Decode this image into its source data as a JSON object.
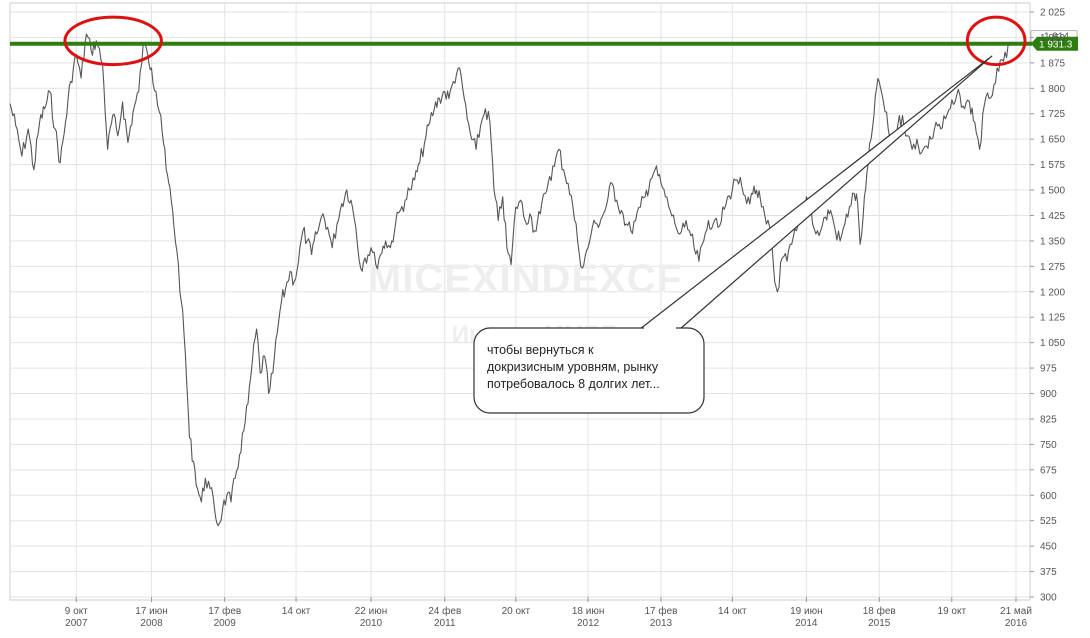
{
  "chart_data": {
    "type": "line",
    "title": "",
    "watermark_title": "MICEXINDEXCF",
    "watermark_subtitle": "Индекс ММВБ",
    "xlabel": "",
    "ylabel": "",
    "ylim": [
      300,
      2025
    ],
    "y_ticks": [
      2025,
      1950,
      1875,
      1800,
      1725,
      1650,
      1575,
      1500,
      1425,
      1350,
      1275,
      1200,
      1125,
      1050,
      975,
      900,
      825,
      750,
      675,
      600,
      525,
      450,
      375,
      300
    ],
    "y_tick_labels": [
      "2 025",
      "1 950",
      "1 875",
      "1 800",
      "1 725",
      "1 650",
      "1 575",
      "1 500",
      "1 425",
      "1 350",
      "1 275",
      "1 200",
      "1 125",
      "1 050",
      "975",
      "900",
      "825",
      "750",
      "675",
      "600",
      "525",
      "450",
      "375",
      "300"
    ],
    "x_range": [
      "2007-03-01",
      "2016-05-21"
    ],
    "x_ticks": [
      {
        "date": "2007-10-09",
        "label": "9 окт",
        "year": "2007"
      },
      {
        "date": "2008-06-17",
        "label": "17 июн",
        "year": "2008"
      },
      {
        "date": "2009-02-17",
        "label": "17 фев",
        "year": "2009"
      },
      {
        "date": "2009-10-14",
        "label": "14 окт",
        "year": ""
      },
      {
        "date": "2010-06-22",
        "label": "22 июн",
        "year": "2010"
      },
      {
        "date": "2011-02-24",
        "label": "24 фев",
        "year": "2011"
      },
      {
        "date": "2011-10-20",
        "label": "20 окт",
        "year": ""
      },
      {
        "date": "2012-06-18",
        "label": "18 июн",
        "year": "2012"
      },
      {
        "date": "2013-02-17",
        "label": "17 фев",
        "year": "2013"
      },
      {
        "date": "2013-10-14",
        "label": "14 окт",
        "year": ""
      },
      {
        "date": "2014-06-19",
        "label": "19 июн",
        "year": "2014"
      },
      {
        "date": "2015-02-18",
        "label": "18 фев",
        "year": "2015"
      },
      {
        "date": "2015-10-19",
        "label": "19 окт",
        "year": ""
      },
      {
        "date": "2016-05-21",
        "label": "21 май",
        "year": "2016"
      }
    ],
    "grid": true,
    "horizontal_level": {
      "value": 1931.3,
      "label": "1 931.3",
      "color": "#2e7d10"
    },
    "secondary_price_label": "1 914",
    "series": [
      {
        "color": "#555555",
        "points": [
          [
            "2007-03-01",
            1755
          ],
          [
            "2007-03-20",
            1690
          ],
          [
            "2007-04-10",
            1600
          ],
          [
            "2007-05-01",
            1680
          ],
          [
            "2007-05-20",
            1560
          ],
          [
            "2007-06-08",
            1700
          ],
          [
            "2007-06-25",
            1740
          ],
          [
            "2007-07-12",
            1790
          ],
          [
            "2007-07-30",
            1680
          ],
          [
            "2007-08-16",
            1580
          ],
          [
            "2007-09-03",
            1700
          ],
          [
            "2007-09-20",
            1820
          ],
          [
            "2007-10-09",
            1900
          ],
          [
            "2007-10-25",
            1830
          ],
          [
            "2007-11-12",
            1960
          ],
          [
            "2007-11-28",
            1910
          ],
          [
            "2007-12-15",
            1940
          ],
          [
            "2008-01-05",
            1870
          ],
          [
            "2008-01-22",
            1620
          ],
          [
            "2008-02-08",
            1720
          ],
          [
            "2008-02-25",
            1660
          ],
          [
            "2008-03-12",
            1760
          ],
          [
            "2008-03-30",
            1640
          ],
          [
            "2008-04-16",
            1730
          ],
          [
            "2008-05-05",
            1790
          ],
          [
            "2008-05-20",
            1930
          ],
          [
            "2008-06-05",
            1895
          ],
          [
            "2008-06-17",
            1860
          ],
          [
            "2008-07-02",
            1790
          ],
          [
            "2008-07-18",
            1720
          ],
          [
            "2008-08-05",
            1560
          ],
          [
            "2008-08-22",
            1470
          ],
          [
            "2008-09-10",
            1320
          ],
          [
            "2008-09-25",
            1170
          ],
          [
            "2008-10-08",
            1020
          ],
          [
            "2008-10-22",
            770
          ],
          [
            "2008-11-05",
            700
          ],
          [
            "2008-11-18",
            620
          ],
          [
            "2008-12-01",
            580
          ],
          [
            "2008-12-14",
            650
          ],
          [
            "2008-12-30",
            620
          ],
          [
            "2009-01-14",
            560
          ],
          [
            "2009-01-26",
            510
          ],
          [
            "2009-02-10",
            560
          ],
          [
            "2009-02-24",
            600
          ],
          [
            "2009-03-10",
            580
          ],
          [
            "2009-03-24",
            650
          ],
          [
            "2009-04-08",
            720
          ],
          [
            "2009-04-22",
            790
          ],
          [
            "2009-05-06",
            870
          ],
          [
            "2009-05-20",
            990
          ],
          [
            "2009-06-04",
            1090
          ],
          [
            "2009-06-16",
            960
          ],
          [
            "2009-07-01",
            1010
          ],
          [
            "2009-07-14",
            900
          ],
          [
            "2009-07-28",
            960
          ],
          [
            "2009-08-12",
            1080
          ],
          [
            "2009-08-26",
            1170
          ],
          [
            "2009-09-09",
            1210
          ],
          [
            "2009-09-24",
            1260
          ],
          [
            "2009-10-08",
            1230
          ],
          [
            "2009-10-22",
            1290
          ],
          [
            "2009-11-06",
            1380
          ],
          [
            "2009-11-20",
            1350
          ],
          [
            "2009-12-05",
            1310
          ],
          [
            "2009-12-22",
            1370
          ],
          [
            "2010-01-12",
            1430
          ],
          [
            "2010-01-28",
            1390
          ],
          [
            "2010-02-12",
            1330
          ],
          [
            "2010-02-28",
            1400
          ],
          [
            "2010-03-16",
            1460
          ],
          [
            "2010-04-02",
            1500
          ],
          [
            "2010-04-16",
            1470
          ],
          [
            "2010-05-02",
            1390
          ],
          [
            "2010-05-18",
            1270
          ],
          [
            "2010-06-02",
            1300
          ],
          [
            "2010-06-22",
            1330
          ],
          [
            "2010-07-08",
            1280
          ],
          [
            "2010-07-24",
            1310
          ],
          [
            "2010-08-10",
            1350
          ],
          [
            "2010-08-26",
            1330
          ],
          [
            "2010-09-12",
            1400
          ],
          [
            "2010-09-28",
            1440
          ],
          [
            "2010-10-14",
            1470
          ],
          [
            "2010-10-30",
            1500
          ],
          [
            "2010-11-15",
            1530
          ],
          [
            "2010-12-02",
            1580
          ],
          [
            "2010-12-18",
            1640
          ],
          [
            "2011-01-05",
            1700
          ],
          [
            "2011-01-20",
            1740
          ],
          [
            "2011-02-06",
            1770
          ],
          [
            "2011-02-24",
            1790
          ],
          [
            "2011-03-10",
            1770
          ],
          [
            "2011-03-25",
            1820
          ],
          [
            "2011-04-10",
            1860
          ],
          [
            "2011-04-25",
            1800
          ],
          [
            "2011-05-10",
            1710
          ],
          [
            "2011-05-25",
            1650
          ],
          [
            "2011-06-09",
            1620
          ],
          [
            "2011-06-24",
            1690
          ],
          [
            "2011-07-10",
            1740
          ],
          [
            "2011-07-25",
            1700
          ],
          [
            "2011-08-08",
            1500
          ],
          [
            "2011-08-22",
            1410
          ],
          [
            "2011-09-06",
            1480
          ],
          [
            "2011-09-20",
            1330
          ],
          [
            "2011-10-04",
            1280
          ],
          [
            "2011-10-20",
            1450
          ],
          [
            "2011-11-05",
            1470
          ],
          [
            "2011-11-20",
            1410
          ],
          [
            "2011-12-06",
            1430
          ],
          [
            "2011-12-22",
            1380
          ],
          [
            "2012-01-10",
            1430
          ],
          [
            "2012-01-26",
            1490
          ],
          [
            "2012-02-10",
            1540
          ],
          [
            "2012-02-26",
            1570
          ],
          [
            "2012-03-12",
            1620
          ],
          [
            "2012-03-28",
            1560
          ],
          [
            "2012-04-12",
            1520
          ],
          [
            "2012-04-28",
            1450
          ],
          [
            "2012-05-14",
            1350
          ],
          [
            "2012-05-30",
            1270
          ],
          [
            "2012-06-18",
            1330
          ],
          [
            "2012-07-02",
            1390
          ],
          [
            "2012-07-18",
            1400
          ],
          [
            "2012-08-04",
            1420
          ],
          [
            "2012-08-20",
            1460
          ],
          [
            "2012-09-06",
            1520
          ],
          [
            "2012-09-22",
            1470
          ],
          [
            "2012-10-08",
            1440
          ],
          [
            "2012-10-24",
            1400
          ],
          [
            "2012-11-08",
            1380
          ],
          [
            "2012-11-24",
            1410
          ],
          [
            "2012-12-10",
            1450
          ],
          [
            "2012-12-26",
            1480
          ],
          [
            "2013-01-12",
            1530
          ],
          [
            "2013-01-28",
            1560
          ],
          [
            "2013-02-17",
            1520
          ],
          [
            "2013-03-04",
            1480
          ],
          [
            "2013-03-20",
            1440
          ],
          [
            "2013-04-05",
            1400
          ],
          [
            "2013-04-21",
            1370
          ],
          [
            "2013-05-07",
            1390
          ],
          [
            "2013-05-23",
            1380
          ],
          [
            "2013-06-08",
            1330
          ],
          [
            "2013-06-24",
            1290
          ],
          [
            "2013-07-10",
            1350
          ],
          [
            "2013-07-26",
            1410
          ],
          [
            "2013-08-11",
            1400
          ],
          [
            "2013-08-27",
            1390
          ],
          [
            "2013-09-12",
            1450
          ],
          [
            "2013-09-28",
            1480
          ],
          [
            "2013-10-14",
            1500
          ],
          [
            "2013-10-30",
            1530
          ],
          [
            "2013-11-15",
            1510
          ],
          [
            "2013-12-01",
            1460
          ],
          [
            "2013-12-17",
            1490
          ],
          [
            "2014-01-03",
            1500
          ],
          [
            "2014-01-20",
            1450
          ],
          [
            "2014-02-05",
            1400
          ],
          [
            "2014-02-21",
            1370
          ],
          [
            "2014-03-05",
            1230
          ],
          [
            "2014-03-14",
            1200
          ],
          [
            "2014-03-30",
            1300
          ],
          [
            "2014-04-15",
            1290
          ],
          [
            "2014-05-01",
            1340
          ],
          [
            "2014-05-17",
            1380
          ],
          [
            "2014-06-02",
            1420
          ],
          [
            "2014-06-19",
            1480
          ],
          [
            "2014-07-05",
            1440
          ],
          [
            "2014-07-21",
            1370
          ],
          [
            "2014-08-06",
            1380
          ],
          [
            "2014-08-22",
            1420
          ],
          [
            "2014-09-08",
            1440
          ],
          [
            "2014-09-24",
            1380
          ],
          [
            "2014-10-10",
            1350
          ],
          [
            "2014-10-26",
            1400
          ],
          [
            "2014-11-10",
            1450
          ],
          [
            "2014-11-26",
            1490
          ],
          [
            "2014-12-08",
            1460
          ],
          [
            "2014-12-16",
            1340
          ],
          [
            "2014-12-26",
            1420
          ],
          [
            "2015-01-12",
            1580
          ],
          [
            "2015-01-26",
            1680
          ],
          [
            "2015-02-05",
            1780
          ],
          [
            "2015-02-18",
            1820
          ],
          [
            "2015-03-04",
            1760
          ],
          [
            "2015-03-20",
            1680
          ],
          [
            "2015-04-05",
            1640
          ],
          [
            "2015-04-21",
            1690
          ],
          [
            "2015-05-07",
            1720
          ],
          [
            "2015-05-23",
            1660
          ],
          [
            "2015-06-08",
            1620
          ],
          [
            "2015-06-24",
            1650
          ],
          [
            "2015-07-10",
            1610
          ],
          [
            "2015-07-26",
            1630
          ],
          [
            "2015-08-11",
            1650
          ],
          [
            "2015-08-27",
            1700
          ],
          [
            "2015-09-12",
            1680
          ],
          [
            "2015-09-28",
            1710
          ],
          [
            "2015-10-14",
            1740
          ],
          [
            "2015-10-30",
            1760
          ],
          [
            "2015-11-15",
            1780
          ],
          [
            "2015-12-01",
            1740
          ],
          [
            "2015-12-17",
            1760
          ],
          [
            "2016-01-04",
            1700
          ],
          [
            "2016-01-20",
            1620
          ],
          [
            "2016-02-05",
            1750
          ],
          [
            "2016-02-21",
            1770
          ],
          [
            "2016-03-08",
            1810
          ],
          [
            "2016-03-24",
            1850
          ],
          [
            "2016-04-09",
            1880
          ],
          [
            "2016-04-25",
            1931
          ]
        ]
      }
    ],
    "annotations": [
      {
        "type": "circle",
        "x_start": "2007-09-01",
        "x_end": "2008-07-20",
        "y_low": 1870,
        "y_high": 2010,
        "color": "#dd1111"
      },
      {
        "type": "circle",
        "x_start": "2015-12-10",
        "x_end": "2016-06-20",
        "y_low": 1870,
        "y_high": 2010,
        "color": "#dd1111"
      },
      {
        "type": "callout",
        "text": [
          "чтобы вернуться к",
          "докризисным уровням, рынку",
          "потребовалось 8 долгих лет..."
        ],
        "target": [
          "2016-03-01",
          1895
        ]
      }
    ]
  }
}
